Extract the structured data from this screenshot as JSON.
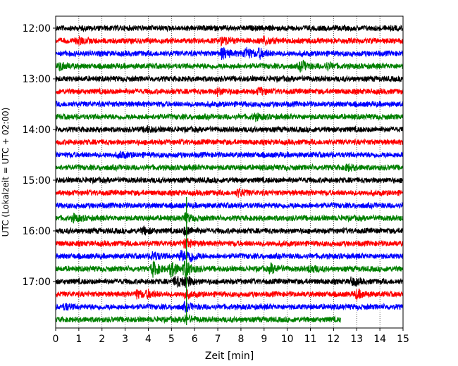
{
  "chart_data": {
    "type": "line",
    "title": "",
    "xlabel": "Zeit  [min]",
    "ylabel": "UTC (Lokalzeit = UTC + 02:00)",
    "xlim": [
      0,
      15
    ],
    "x_ticks": [
      "0",
      "1",
      "2",
      "3",
      "4",
      "5",
      "6",
      "7",
      "8",
      "9",
      "10",
      "11",
      "12",
      "13",
      "14",
      "15"
    ],
    "y_ticks": [
      "12:00",
      "13:00",
      "14:00",
      "15:00",
      "16:00",
      "17:00"
    ],
    "grid": "vertical dotted",
    "trace_interval_minutes": 15,
    "series_colors": [
      "#000000",
      "#ff0000",
      "#0000ff",
      "#008000"
    ],
    "traces": [
      {
        "start": "12:00",
        "end_min": 15
      },
      {
        "start": "12:15",
        "end_min": 15,
        "events": [
          {
            "t": 1.0,
            "amp": 1.2
          },
          {
            "t": 7.2,
            "amp": 1.6
          },
          {
            "t": 9.0,
            "amp": 1.5
          }
        ]
      },
      {
        "start": "12:30",
        "end_min": 15,
        "events": [
          {
            "t": 7.2,
            "amp": 2.2
          },
          {
            "t": 8.2,
            "amp": 2.4
          },
          {
            "t": 8.8,
            "amp": 1.6
          }
        ]
      },
      {
        "start": "12:45",
        "end_min": 15,
        "events": [
          {
            "t": 0.2,
            "amp": 1.4
          },
          {
            "t": 10.6,
            "amp": 2.0
          },
          {
            "t": 11.7,
            "amp": 1.2
          }
        ]
      },
      {
        "start": "13:00",
        "end_min": 15
      },
      {
        "start": "13:15",
        "end_min": 15,
        "events": [
          {
            "t": 7.0,
            "amp": 1.2
          },
          {
            "t": 8.8,
            "amp": 1.2
          }
        ]
      },
      {
        "start": "13:30",
        "end_min": 15
      },
      {
        "start": "13:45",
        "end_min": 15,
        "events": [
          {
            "t": 8.6,
            "amp": 1.0
          }
        ]
      },
      {
        "start": "14:00",
        "end_min": 15,
        "events": [
          {
            "t": 3.9,
            "amp": 1.0
          }
        ]
      },
      {
        "start": "14:15",
        "end_min": 15
      },
      {
        "start": "14:30",
        "end_min": 15,
        "events": [
          {
            "t": 2.8,
            "amp": 1.0
          }
        ]
      },
      {
        "start": "14:45",
        "end_min": 15,
        "events": [
          {
            "t": 12.6,
            "amp": 1.0
          }
        ]
      },
      {
        "start": "15:00",
        "end_min": 15
      },
      {
        "start": "15:15",
        "end_min": 15,
        "events": [
          {
            "t": 7.9,
            "amp": 1.4
          }
        ]
      },
      {
        "start": "15:30",
        "end_min": 15
      },
      {
        "start": "15:45",
        "end_min": 15,
        "events": [
          {
            "t": 0.8,
            "amp": 1.2
          },
          {
            "t": 5.6,
            "amp": 1.6
          }
        ]
      },
      {
        "start": "16:00",
        "end_min": 15,
        "events": [
          {
            "t": 3.8,
            "amp": 1.2
          },
          {
            "t": 5.6,
            "amp": 1.6
          }
        ]
      },
      {
        "start": "16:15",
        "end_min": 15,
        "events": [
          {
            "t": 5.6,
            "amp": 1.8
          }
        ]
      },
      {
        "start": "16:30",
        "end_min": 15,
        "events": [
          {
            "t": 4.2,
            "amp": 1.6
          },
          {
            "t": 5.4,
            "amp": 2.0
          },
          {
            "t": 5.8,
            "amp": 2.0
          }
        ]
      },
      {
        "start": "16:45",
        "end_min": 15,
        "events": [
          {
            "t": 4.2,
            "amp": 2.8
          },
          {
            "t": 5.0,
            "amp": 3.0
          },
          {
            "t": 5.6,
            "amp": 3.2
          },
          {
            "t": 9.3,
            "amp": 1.6
          },
          {
            "t": 11.0,
            "amp": 1.4
          }
        ]
      },
      {
        "start": "17:00",
        "end_min": 15,
        "events": [
          {
            "t": 5.2,
            "amp": 2.0
          },
          {
            "t": 5.6,
            "amp": 2.0
          },
          {
            "t": 12.8,
            "amp": 1.4
          }
        ]
      },
      {
        "start": "17:15",
        "end_min": 15,
        "events": [
          {
            "t": 3.5,
            "amp": 1.4
          },
          {
            "t": 4.0,
            "amp": 1.2
          },
          {
            "t": 5.6,
            "amp": 1.4
          },
          {
            "t": 13.0,
            "amp": 1.6
          }
        ]
      },
      {
        "start": "17:30",
        "end_min": 15,
        "events": [
          {
            "t": 0.4,
            "amp": 1.0
          },
          {
            "t": 5.6,
            "amp": 1.4
          }
        ]
      },
      {
        "start": "17:45",
        "end_min": 12.3,
        "events": [
          {
            "t": 5.6,
            "amp": 1.4
          }
        ]
      }
    ]
  }
}
